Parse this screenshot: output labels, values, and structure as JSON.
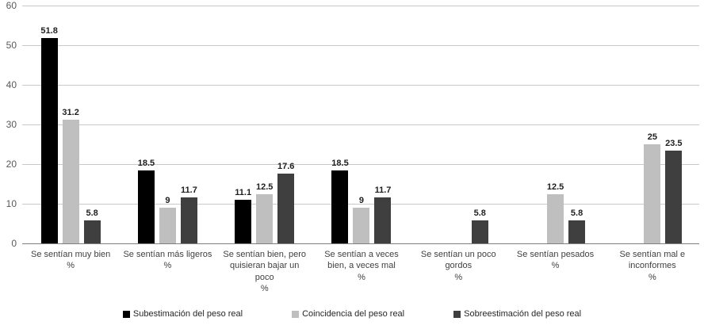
{
  "chart_data": {
    "type": "bar",
    "title": "",
    "xlabel": "",
    "ylabel": "",
    "ylim": [
      0,
      60
    ],
    "yticks": [
      0,
      10,
      20,
      30,
      40,
      50,
      60
    ],
    "grid": true,
    "legend_position": "bottom",
    "categories": [
      "Se sentían muy bien\n%",
      "Se sentían más ligeros\n%",
      "Se sentían bien, pero\nquisieran bajar un\npoco\n%",
      "Se sentían a veces\nbien, a veces mal\n%",
      "Se sentían un poco\ngordos\n%",
      "Se sentían pesados\n%",
      "Se sentían mal e\ninconformes\n%"
    ],
    "series": [
      {
        "name": "Subestimación del peso real",
        "color": "#000000",
        "values": [
          51.8,
          18.5,
          11.1,
          18.5,
          null,
          null,
          null
        ]
      },
      {
        "name": "Coincidencia del peso real",
        "color": "#bfbfbf",
        "values": [
          31.2,
          9,
          12.5,
          9,
          null,
          12.5,
          25
        ]
      },
      {
        "name": "Sobreestimación del peso real",
        "color": "#3f3f3f",
        "values": [
          5.8,
          11.7,
          17.6,
          11.7,
          5.8,
          5.8,
          23.5
        ]
      }
    ]
  }
}
